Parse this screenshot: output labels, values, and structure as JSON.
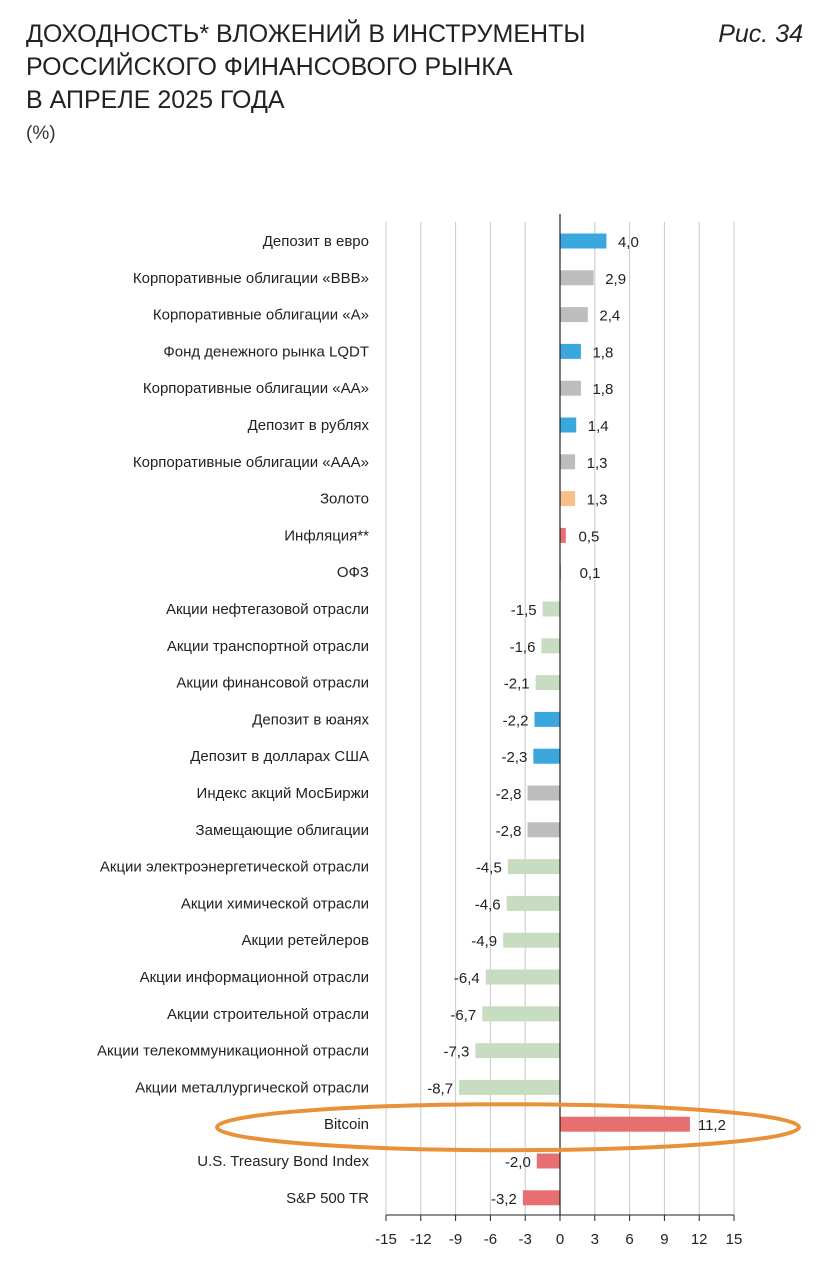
{
  "header": {
    "title_lines": [
      "ДОХОДНОСТЬ* ВЛОЖЕНИЙ В ИНСТРУМЕНТЫ",
      "РОССИЙСКОГО ФИНАНСОВОГО РЫНКА",
      "В АПРЕЛЕ 2025 ГОДА"
    ],
    "figure_label": "Рис. 34",
    "unit": "(%)"
  },
  "colors": {
    "blue": "#3aa8df",
    "gray": "#bdbdbd",
    "orange": "#f7c08a",
    "red": "#e76f6f",
    "green": "#c7dcc0",
    "grid": "#c8c8c8",
    "axis": "#222222",
    "highlight_ellipse": "#e8913a"
  },
  "chart_data": {
    "type": "bar",
    "orientation": "horizontal",
    "categories": [
      "Депозит в евро",
      "Корпоративные облигации «BBB»",
      "Корпоративные облигации «A»",
      "Фонд денежного рынка LQDT",
      "Корпоративные облигации «AA»",
      "Депозит в рублях",
      "Корпоративные облигации «AAA»",
      "Золото",
      "Инфляция**",
      "ОФЗ",
      "Акции нефтегазовой отрасли",
      "Акции транспортной отрасли",
      "Акции финансовой отрасли",
      "Депозит в юанях",
      "Депозит в долларах США",
      "Индекс акций МосБиржи",
      "Замещающие облигации",
      "Акции электроэнергетической отрасли",
      "Акции химической отрасли",
      "Акции ретейлеров",
      "Акции информационной отрасли",
      "Акции строительной отрасли",
      "Акции телекоммуникационной отрасли",
      "Акции металлургической отрасли",
      "Bitcoin",
      "U.S. Treasury Bond Index",
      "S&P 500 TR"
    ],
    "values": [
      4.0,
      2.9,
      2.4,
      1.8,
      1.8,
      1.4,
      1.3,
      1.3,
      0.5,
      0.1,
      -1.5,
      -1.6,
      -2.1,
      -2.2,
      -2.3,
      -2.8,
      -2.8,
      -4.5,
      -4.6,
      -4.9,
      -6.4,
      -6.7,
      -7.3,
      -8.7,
      11.2,
      -2.0,
      -3.2
    ],
    "value_labels": [
      "4,0",
      "2,9",
      "2,4",
      "1,8",
      "1,8",
      "1,4",
      "1,3",
      "1,3",
      "0,5",
      "0,1",
      "-1,5",
      "-1,6",
      "-2,1",
      "-2,2",
      "-2,3",
      "-2,8",
      "-2,8",
      "-4,5",
      "-4,6",
      "-4,9",
      "-6,4",
      "-6,7",
      "-7,3",
      "-8,7",
      "11,2",
      "-2,0",
      "-3,2"
    ],
    "bar_colors": [
      "blue",
      "gray",
      "gray",
      "blue",
      "gray",
      "blue",
      "gray",
      "orange",
      "red",
      "gray",
      "green",
      "green",
      "green",
      "blue",
      "blue",
      "gray",
      "gray",
      "green",
      "green",
      "green",
      "green",
      "green",
      "green",
      "green",
      "red",
      "red",
      "red"
    ],
    "xlim": [
      -15,
      15
    ],
    "xticks": [
      -15,
      -12,
      -9,
      -6,
      -3,
      0,
      3,
      6,
      9,
      12,
      15
    ],
    "grid": true,
    "highlighted_category": "Bitcoin"
  }
}
